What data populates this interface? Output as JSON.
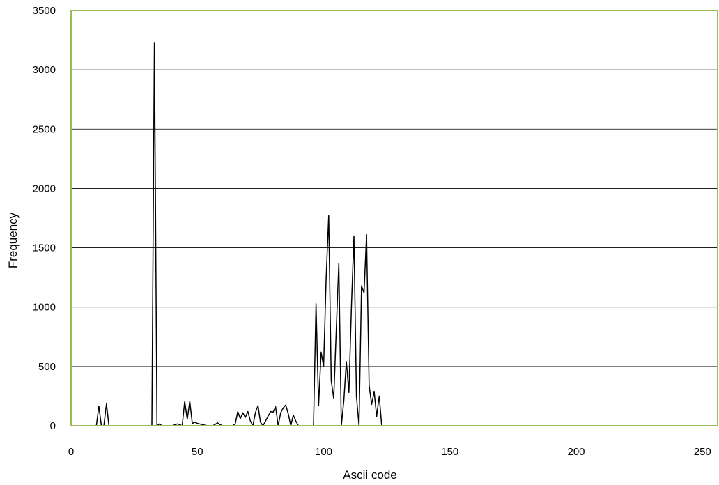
{
  "chart_data": {
    "type": "line",
    "title": "",
    "xlabel": "Ascii code",
    "ylabel": "Frequency",
    "xlim": [
      0,
      256
    ],
    "ylim": [
      0,
      3500
    ],
    "xticks": [
      0,
      50,
      100,
      150,
      200,
      250
    ],
    "yticks": [
      0,
      500,
      1000,
      1500,
      2000,
      2500,
      3000,
      3500
    ],
    "grid": "horizontal",
    "legend": "none",
    "colors": {
      "line": "#000000",
      "plot_border": "#9bbb59",
      "grid": "#000000"
    },
    "series": [
      {
        "x": [
          0,
          10,
          11,
          12,
          13,
          14,
          15,
          32,
          33,
          34,
          35,
          36,
          40,
          42,
          43,
          44,
          45,
          46,
          47,
          48,
          49,
          50,
          52,
          54,
          56,
          57,
          58,
          59,
          60,
          62,
          64,
          65,
          66,
          67,
          68,
          69,
          70,
          71,
          72,
          73,
          74,
          75,
          76,
          78,
          79,
          80,
          81,
          82,
          83,
          84,
          85,
          86,
          87,
          88,
          89,
          90,
          96,
          97,
          98,
          99,
          100,
          101,
          102,
          103,
          104,
          105,
          106,
          107,
          108,
          109,
          110,
          111,
          112,
          113,
          114,
          115,
          116,
          117,
          118,
          119,
          120,
          121,
          122,
          123,
          124,
          256
        ],
        "y": [
          0,
          0,
          165,
          0,
          0,
          185,
          0,
          0,
          3230,
          0,
          15,
          0,
          0,
          15,
          10,
          0,
          205,
          55,
          205,
          20,
          30,
          20,
          10,
          0,
          0,
          10,
          25,
          10,
          0,
          0,
          0,
          15,
          120,
          60,
          110,
          70,
          120,
          40,
          0,
          110,
          170,
          30,
          0,
          80,
          120,
          115,
          160,
          0,
          110,
          150,
          175,
          100,
          0,
          90,
          40,
          0,
          0,
          1030,
          170,
          620,
          500,
          1240,
          1770,
          380,
          230,
          800,
          1370,
          0,
          210,
          540,
          280,
          1000,
          1600,
          250,
          0,
          1180,
          1120,
          1610,
          340,
          180,
          290,
          80,
          250,
          0,
          0,
          0
        ]
      }
    ]
  }
}
